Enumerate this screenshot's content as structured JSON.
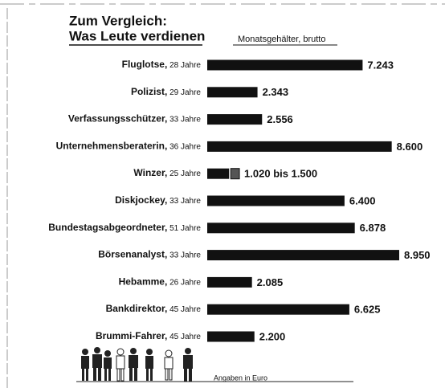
{
  "chart_data": {
    "type": "bar",
    "orientation": "horizontal",
    "title": [
      "Zum Vergleich:",
      "Was Leute verdienen"
    ],
    "subtitle": "Monatsgehälter, brutto",
    "note": "Angaben in Euro",
    "categories": [
      "Fluglotse, 28 Jahre",
      "Polizist, 29 Jahre",
      "Verfassungsschützer, 33 Jahre",
      "Unternehmensberaterin, 36 Jahre",
      "Winzer, 25 Jahre",
      "Diskjockey, 33 Jahre",
      "Bundestagsabgeordneter, 51 Jahre",
      "Börsenanalyst, 33 Jahre",
      "Hebamme, 26 Jahre",
      "Bankdirektor, 45 Jahre",
      "Brummi-Fahrer, 45 Jahre"
    ],
    "values": [
      7243,
      2343,
      2556,
      8600,
      1020,
      6400,
      6878,
      8950,
      2085,
      6625,
      2200
    ],
    "range_ends": [
      null,
      null,
      null,
      null,
      1500,
      null,
      null,
      null,
      null,
      null,
      null
    ],
    "value_labels": [
      "7.243",
      "2.343",
      "2.556",
      "8.600",
      "1.020 bis 1.500",
      "6.400",
      "6.878",
      "8.950",
      "2.085",
      "6.625",
      "2.200"
    ],
    "color": "#111111"
  }
}
